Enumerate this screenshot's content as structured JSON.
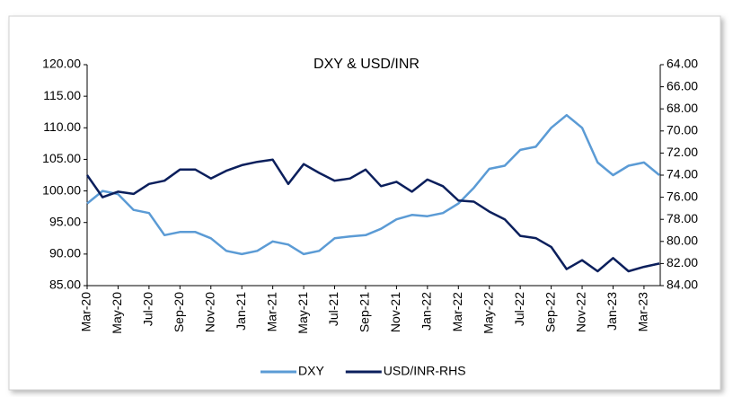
{
  "chart_data": {
    "type": "line",
    "title": "DXY & USD/INR",
    "categories": [
      "Mar-20",
      null,
      "May-20",
      null,
      "Jul-20",
      null,
      "Sep-20",
      null,
      "Nov-20",
      null,
      "Jan-21",
      null,
      "Mar-21",
      null,
      "May-21",
      null,
      "Jul-21",
      null,
      "Sep-21",
      null,
      "Nov-21",
      null,
      "Jan-22",
      null,
      "Mar-22",
      null,
      "May-22",
      null,
      "Jul-22",
      null,
      "Sep-22",
      null,
      "Nov-22",
      null,
      "Jan-23",
      null,
      "Mar-23",
      null
    ],
    "series": [
      {
        "name": "DXY",
        "color": "#5b9bd5",
        "axis": "y",
        "values": [
          98,
          100,
          99.5,
          97,
          96.5,
          93,
          93.5,
          93.5,
          92.5,
          90.5,
          90,
          90.5,
          92,
          91.5,
          90,
          90.5,
          92.5,
          92.8,
          93,
          94,
          95.5,
          96.2,
          96,
          96.5,
          98,
          100.5,
          103.5,
          104,
          106.5,
          107,
          110,
          112,
          110,
          104.5,
          102.5,
          104,
          104.5,
          102.5
        ]
      },
      {
        "name": "USD/INR-RHS",
        "color": "#0b1f5c",
        "axis": "y2",
        "values": [
          74,
          76,
          75.5,
          75.7,
          74.8,
          74.5,
          73.5,
          73.5,
          74.3,
          73.6,
          73.1,
          72.8,
          72.6,
          74.8,
          73,
          73.8,
          74.5,
          74.3,
          73.5,
          75,
          74.6,
          75.5,
          74.4,
          75,
          76.3,
          76.4,
          77.3,
          78,
          79.5,
          79.7,
          80.5,
          82.5,
          81.7,
          82.7,
          81.5,
          82.7,
          82.3,
          82
        ]
      }
    ],
    "ylim": [
      85,
      120
    ],
    "yticks": [
      {
        "value": 85,
        "label": "85.00"
      },
      {
        "value": 90,
        "label": "90.00"
      },
      {
        "value": 95,
        "label": "95.00"
      },
      {
        "value": 100,
        "label": "100.00"
      },
      {
        "value": 105,
        "label": "105.00"
      },
      {
        "value": 110,
        "label": "110.00"
      },
      {
        "value": 115,
        "label": "115.00"
      },
      {
        "value": 120,
        "label": "120.00"
      }
    ],
    "y2lim": [
      64,
      84
    ],
    "y2invert": true,
    "y2ticks": [
      {
        "value": 64,
        "label": "64.00"
      },
      {
        "value": 66,
        "label": "66.00"
      },
      {
        "value": 68,
        "label": "68.00"
      },
      {
        "value": 70,
        "label": "70.00"
      },
      {
        "value": 72,
        "label": "72.00"
      },
      {
        "value": 74,
        "label": "74.00"
      },
      {
        "value": 76,
        "label": "76.00"
      },
      {
        "value": 78,
        "label": "78.00"
      },
      {
        "value": 80,
        "label": "80.00"
      },
      {
        "value": 82,
        "label": "82.00"
      },
      {
        "value": 84,
        "label": "84.00"
      }
    ],
    "grid": false,
    "legend": "bottom"
  }
}
